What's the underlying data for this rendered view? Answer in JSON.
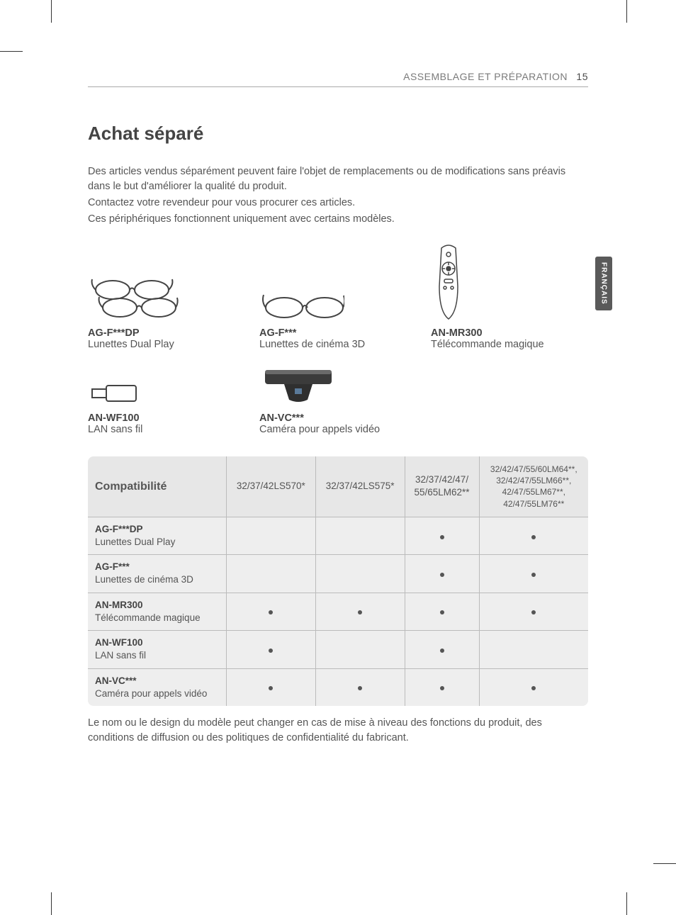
{
  "header": {
    "running_title": "ASSEMBLAGE ET PRÉPARATION",
    "page_number": "15"
  },
  "side_tab": "FRANÇAIS",
  "title": "Achat séparé",
  "intro_lines": [
    "Des articles vendus séparément peuvent faire l'objet de remplacements ou de modifications sans préavis dans le but d'améliorer la qualité du produit.",
    "Contactez votre revendeur pour vous procurer ces articles.",
    "Ces périphériques fonctionnent uniquement avec certains modèles."
  ],
  "items": [
    {
      "model": "AG-F***DP",
      "desc": "Lunettes Dual Play"
    },
    {
      "model": "AG-F***",
      "desc": "Lunettes de cinéma 3D"
    },
    {
      "model": "AN-MR300",
      "desc": "Télécommande magique"
    },
    {
      "model": "AN-WF100",
      "desc": "LAN sans fil"
    },
    {
      "model": "AN-VC***",
      "desc": "Caméra pour appels vidéo"
    }
  ],
  "compat": {
    "header_label": "Compatibilité",
    "columns": [
      "32/37/42LS570*",
      "32/37/42LS575*",
      "32/37/42/47/\n55/65LM62**",
      "32/42/47/55/60LM64**,\n32/42/47/55LM66**,\n42/47/55LM67**,\n42/47/55LM76**"
    ],
    "rows": [
      {
        "model": "AG-F***DP",
        "desc": "Lunettes Dual Play",
        "cells": [
          false,
          false,
          true,
          true
        ]
      },
      {
        "model": "AG-F***",
        "desc": "Lunettes de cinéma 3D",
        "cells": [
          false,
          false,
          true,
          true
        ]
      },
      {
        "model": "AN-MR300",
        "desc": "Télécommande magique",
        "cells": [
          true,
          true,
          true,
          true
        ]
      },
      {
        "model": "AN-WF100",
        "desc": "LAN sans fil",
        "cells": [
          true,
          false,
          true,
          false
        ]
      },
      {
        "model": "AN-VC***",
        "desc": "Caméra pour appels vidéo",
        "cells": [
          true,
          true,
          true,
          true
        ]
      }
    ]
  },
  "footnote": "Le nom ou le design du modèle peut changer en cas de mise à niveau des fonctions du produit, des conditions de diffusion ou des politiques de confidentialité du fabricant.",
  "colors": {
    "text": "#4a4a4a",
    "muted": "#7a7a7a",
    "table_header_bg": "#e7e7e7",
    "table_body_bg": "#eeeeee",
    "rule": "#aaaaaa",
    "side_tab_bg": "#5a5a5a"
  }
}
